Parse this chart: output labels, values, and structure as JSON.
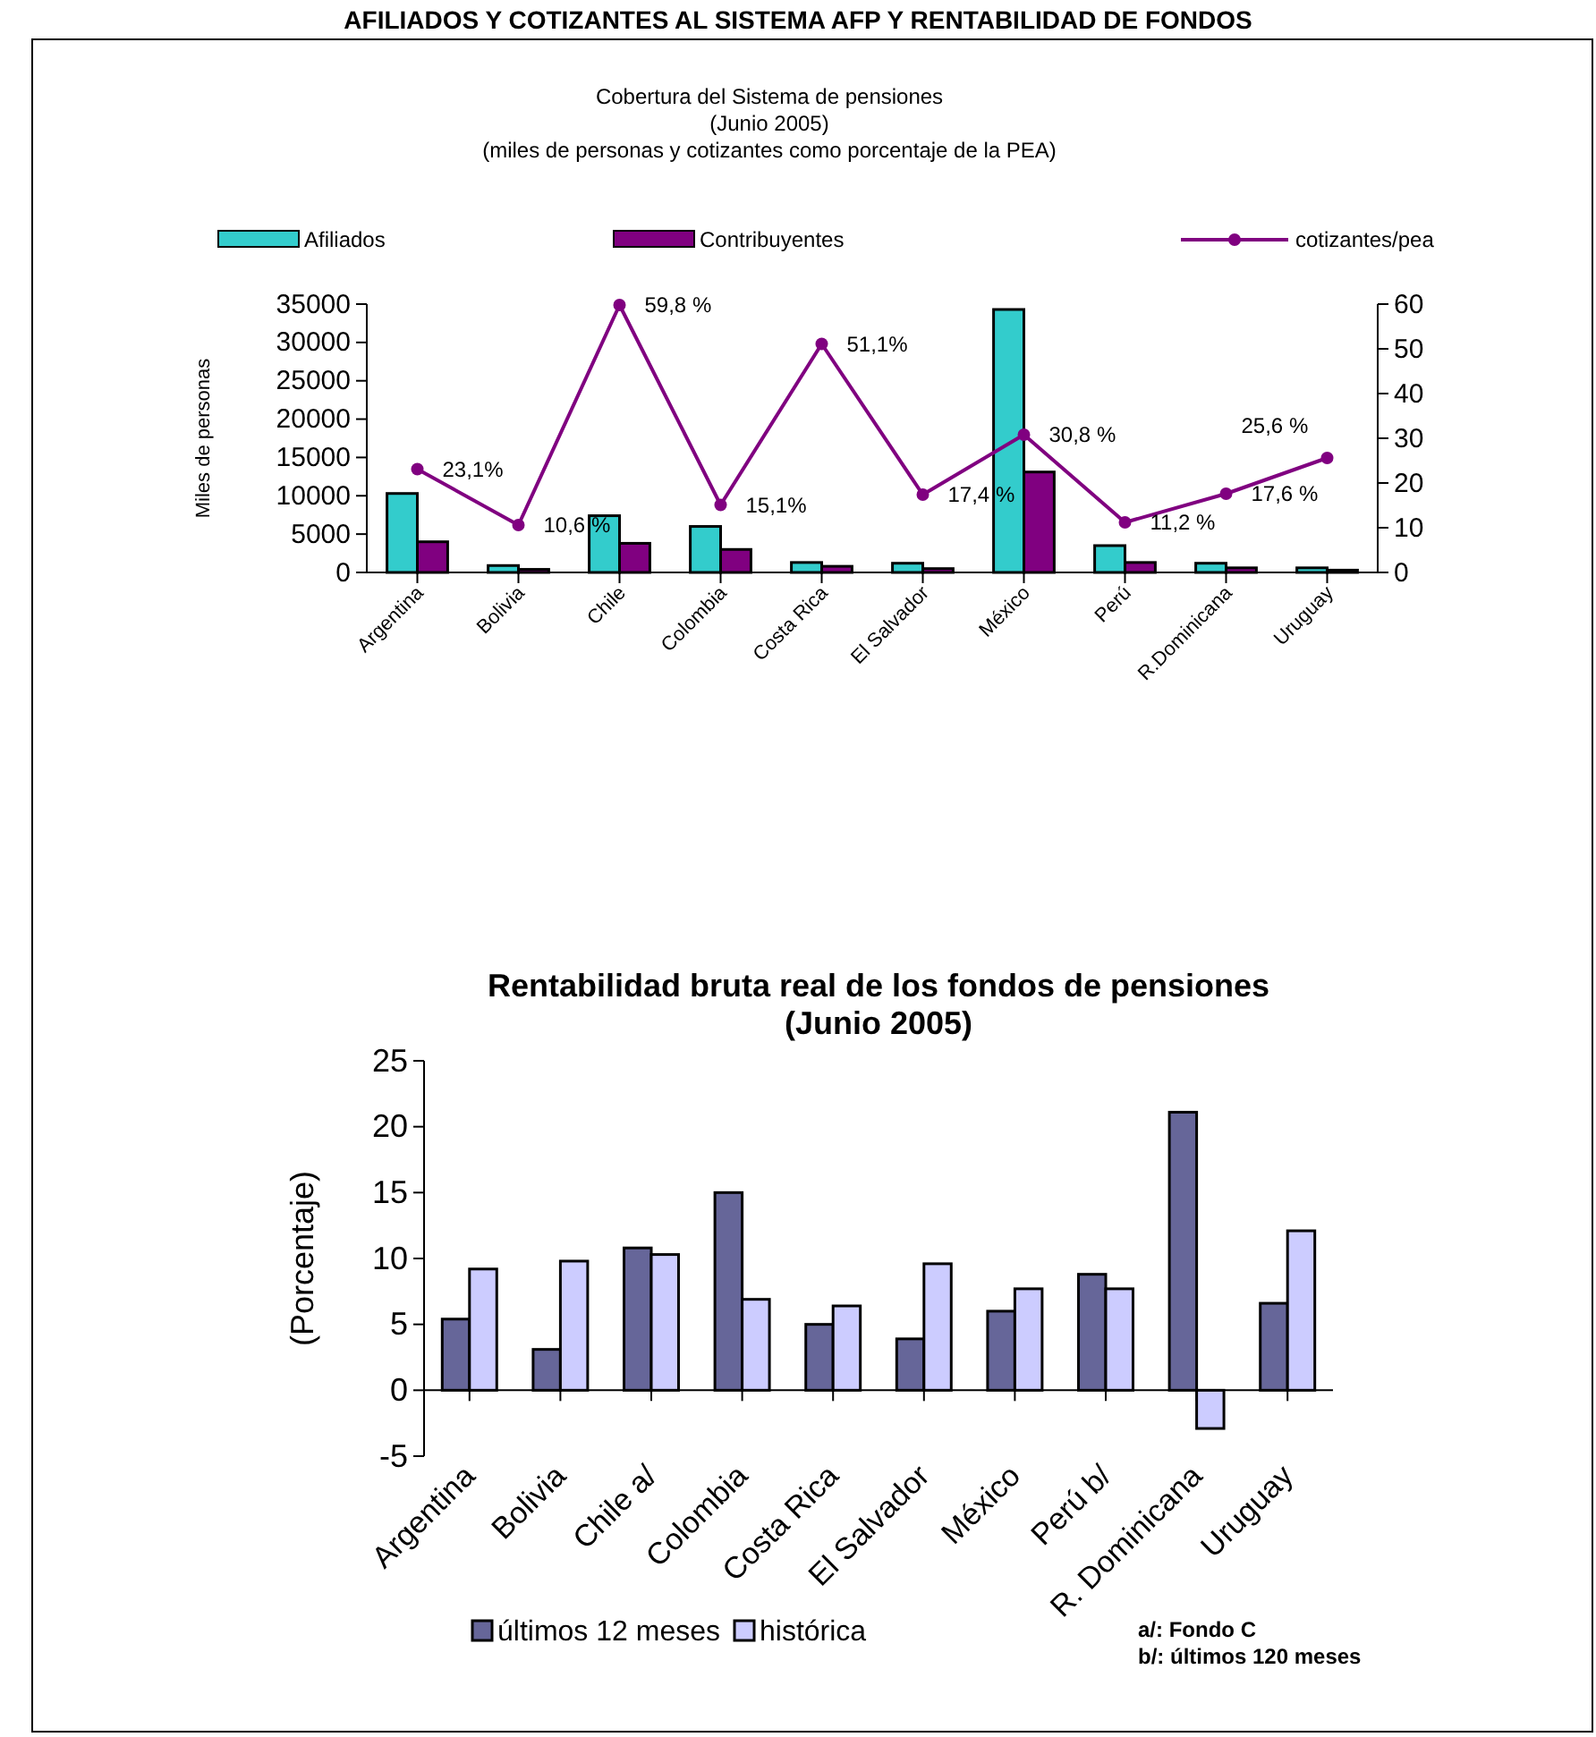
{
  "chart_data": [
    {
      "type": "bar",
      "title": "Cobertura del Sistema de pensiones",
      "subtitle": "(Junio 2005)",
      "annotations": [
        "AFILIADOS Y COTIZANTES AL SISTEMA AFP Y RENTABILIDAD DE FONDOS",
        "(miles de personas y cotizantes como porcentaje de la PEA)"
      ],
      "ylabel": "Miles de personas",
      "categories": [
        "Argentina",
        "Bolivia",
        "Chile",
        "Colombia",
        "Costa Rica",
        "El Salvador",
        "México",
        "Perú",
        "R.Dominicana",
        "Uruguay"
      ],
      "series": [
        {
          "name": "Afiliados",
          "color": "#33cccc",
          "values": [
            10300,
            900,
            7400,
            6000,
            1300,
            1200,
            34300,
            3500,
            1200,
            600
          ]
        },
        {
          "name": "Contribuyentes",
          "color": "#800080",
          "values": [
            4000,
            400,
            3800,
            3000,
            800,
            500,
            13100,
            1300,
            600,
            300
          ]
        },
        {
          "name": "cotizantes/pea",
          "type": "line",
          "axis": "y2",
          "color": "#800080",
          "marker": "circle",
          "values": [
            23.1,
            10.6,
            59.8,
            15.1,
            51.1,
            17.4,
            30.8,
            11.2,
            17.6,
            25.6
          ],
          "value_labels": [
            "23,1%",
            "10,6 %",
            "59,8 %",
            "15,1%",
            "51,1%",
            "17,4 %",
            "30,8 %",
            "11,2 %",
            "17,6 %",
            "25,6 %"
          ]
        }
      ],
      "ylim": [
        0,
        35000
      ],
      "yticks": [
        0,
        5000,
        10000,
        15000,
        20000,
        25000,
        30000,
        35000
      ],
      "y2lim": [
        0,
        60
      ],
      "y2ticks": [
        0,
        10,
        20,
        30,
        40,
        50,
        60
      ],
      "legend": "top",
      "grid": false
    },
    {
      "type": "bar",
      "title": "Rentabilidad bruta real de los fondos de pensiones",
      "subtitle": "(Junio 2005)",
      "ylabel": "(Porcentaje)",
      "annotations": [
        "a/: Fondo C",
        "b/: últimos 120 meses"
      ],
      "categories": [
        "Argentina",
        "Bolivia",
        "Chile a/",
        "Colombia",
        "Costa Rica",
        "El Salvador",
        "México",
        "Perú b/",
        "R. Dominicana",
        "Uruguay"
      ],
      "series": [
        {
          "name": "últimos 12 meses",
          "color": "#666699",
          "values": [
            5.4,
            3.1,
            10.8,
            15.0,
            5.0,
            3.9,
            6.0,
            8.8,
            21.1,
            6.6
          ]
        },
        {
          "name": "histórica",
          "color": "#ccccff",
          "values": [
            9.2,
            9.8,
            10.3,
            6.9,
            6.4,
            9.6,
            7.7,
            7.7,
            -2.9,
            12.1
          ]
        }
      ],
      "ylim": [
        -5,
        25
      ],
      "yticks": [
        -5,
        0,
        5,
        10,
        15,
        20,
        25
      ],
      "legend": "bottom",
      "grid": false
    }
  ]
}
